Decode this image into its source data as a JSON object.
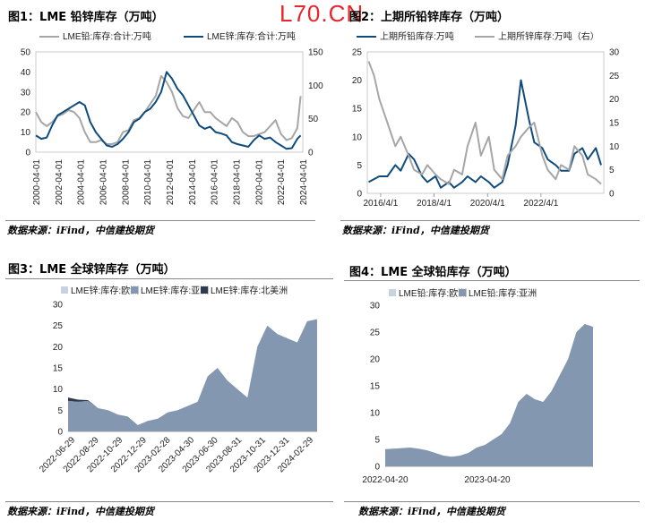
{
  "watermark": "L70.CN",
  "panels": {
    "fig1": {
      "title": "图1：LME 铅锌库存（万吨）",
      "source": "数据来源：iFind，中信建投期货"
    },
    "fig2": {
      "title": "图2：上期所铅锌库存（万吨）",
      "source": "数据来源：iFind，中信建投期货"
    },
    "fig3": {
      "title": "图3：LME 全球锌库存（万吨）",
      "source": "数据来源：iFind，中信建投期货"
    },
    "fig4": {
      "title": "图4：LME 全球铅库存（万吨）",
      "source": "数据来源：iFind，中信建投期货"
    }
  },
  "chart_data": [
    {
      "id": "fig1",
      "type": "line",
      "series": [
        {
          "name": "LME铅:库存:合计:万吨",
          "axis": "left",
          "color": "#a6a6a6",
          "x": [
            2000.0,
            2000.5,
            2001.0,
            2001.5,
            2002.0,
            2002.5,
            2003.0,
            2003.5,
            2004.0,
            2004.5,
            2005.0,
            2005.5,
            2006.0,
            2006.5,
            2007.0,
            2007.5,
            2008.0,
            2008.5,
            2009.0,
            2009.5,
            2010.0,
            2010.5,
            2011.0,
            2011.5,
            2012.0,
            2012.5,
            2013.0,
            2013.5,
            2014.0,
            2014.5,
            2015.0,
            2015.5,
            2016.0,
            2016.5,
            2017.0,
            2017.5,
            2018.0,
            2018.5,
            2019.0,
            2019.5,
            2020.0,
            2020.5,
            2021.0,
            2021.5,
            2022.0,
            2022.5,
            2023.0,
            2023.5,
            2024.0,
            2024.3
          ],
          "values": [
            20,
            15,
            13,
            15,
            18,
            19,
            21,
            20,
            17,
            10,
            5,
            5,
            6,
            4,
            4,
            5,
            10,
            11,
            16,
            17,
            20,
            24,
            28,
            38,
            35,
            30,
            22,
            18,
            17,
            21,
            25,
            20,
            20,
            17,
            15,
            13,
            17,
            15,
            10,
            8,
            8,
            9,
            10,
            13,
            16,
            9,
            6,
            7,
            12,
            28
          ]
        },
        {
          "name": "LME锌:库存:合计:万吨",
          "axis": "right",
          "color": "#0f4c7d",
          "x": [
            2000.0,
            2000.5,
            2001.0,
            2001.5,
            2002.0,
            2002.5,
            2003.0,
            2003.5,
            2004.0,
            2004.5,
            2005.0,
            2005.5,
            2006.0,
            2006.5,
            2007.0,
            2007.5,
            2008.0,
            2008.5,
            2009.0,
            2009.5,
            2010.0,
            2010.5,
            2011.0,
            2011.5,
            2012.0,
            2012.5,
            2013.0,
            2013.5,
            2014.0,
            2014.5,
            2015.0,
            2015.5,
            2016.0,
            2016.5,
            2017.0,
            2017.5,
            2018.0,
            2018.5,
            2019.0,
            2019.5,
            2020.0,
            2020.5,
            2021.0,
            2021.5,
            2022.0,
            2022.5,
            2023.0,
            2023.5,
            2024.0,
            2024.3
          ],
          "values": [
            25,
            20,
            22,
            40,
            55,
            60,
            65,
            70,
            75,
            70,
            45,
            30,
            20,
            10,
            8,
            12,
            20,
            30,
            45,
            50,
            60,
            65,
            75,
            90,
            120,
            110,
            95,
            85,
            70,
            55,
            40,
            35,
            38,
            30,
            28,
            25,
            15,
            12,
            10,
            8,
            18,
            25,
            20,
            22,
            15,
            10,
            5,
            6,
            20,
            25
          ]
        }
      ],
      "yLeft": [
        0,
        50
      ],
      "yRight": [
        0,
        150
      ],
      "yLeftTicks": [
        0,
        10,
        20,
        30,
        40,
        50
      ],
      "yRightTicks": [
        0,
        50,
        100,
        150
      ],
      "xTicks": [
        "2000-04-01",
        "2002-04-01",
        "2004-04-01",
        "2006-04-01",
        "2008-04-01",
        "2010-04-01",
        "2012-04-01",
        "2014-04-01",
        "2016-04-01",
        "2018-04-01",
        "2020-04-01",
        "2022-04-01",
        "2024-04-01"
      ]
    },
    {
      "id": "fig2",
      "type": "line",
      "series": [
        {
          "name": "上期所铅库存:万吨",
          "axis": "left",
          "color": "#0f4c7d",
          "x": [
            2015.8,
            2016.2,
            2016.5,
            2016.8,
            2017.0,
            2017.3,
            2017.5,
            2017.8,
            2018.0,
            2018.3,
            2018.5,
            2018.8,
            2019.0,
            2019.3,
            2019.5,
            2019.8,
            2020.0,
            2020.3,
            2020.5,
            2020.8,
            2021.0,
            2021.3,
            2021.5,
            2021.8,
            2022.0,
            2022.3,
            2022.5,
            2022.8,
            2023.0,
            2023.3,
            2023.5,
            2023.8,
            2024.0,
            2024.3,
            2024.5
          ],
          "values": [
            2,
            3,
            3,
            5,
            4,
            7,
            6,
            3,
            2,
            3,
            1,
            2,
            1,
            2,
            3,
            2,
            3,
            2,
            1,
            2,
            5,
            12,
            20,
            13,
            9,
            8,
            6,
            5,
            4,
            4,
            7,
            8,
            6,
            8,
            5
          ]
        },
        {
          "name": "上期所锌库存:万吨（右）",
          "axis": "right",
          "color": "#a6a6a6",
          "x": [
            2015.8,
            2016.0,
            2016.2,
            2016.5,
            2016.8,
            2017.0,
            2017.3,
            2017.5,
            2017.8,
            2018.0,
            2018.3,
            2018.5,
            2018.8,
            2019.0,
            2019.3,
            2019.5,
            2019.8,
            2020.0,
            2020.3,
            2020.5,
            2020.8,
            2021.0,
            2021.3,
            2021.5,
            2021.8,
            2022.0,
            2022.3,
            2022.5,
            2022.8,
            2023.0,
            2023.3,
            2023.5,
            2023.8,
            2024.0,
            2024.3,
            2024.5
          ],
          "values": [
            28,
            25,
            20,
            15,
            10,
            12,
            8,
            5,
            4,
            6,
            4,
            3,
            2,
            5,
            4,
            10,
            15,
            8,
            12,
            5,
            3,
            8,
            10,
            12,
            14,
            15,
            8,
            5,
            3,
            6,
            5,
            10,
            8,
            4,
            3,
            2
          ]
        }
      ],
      "yLeft": [
        0,
        25
      ],
      "yRight": [
        0,
        30
      ],
      "yLeftTicks": [
        0,
        5,
        10,
        15,
        20,
        25
      ],
      "yRightTicks": [
        0,
        5,
        10,
        15,
        20,
        25,
        30
      ],
      "xTicks": [
        "2016/4/1",
        "2018/4/1",
        "2020/4/1",
        "2022/4/1"
      ]
    },
    {
      "id": "fig3",
      "type": "area",
      "series": [
        {
          "name": "LME锌:库存:欧洲",
          "color": "#c9d2e3",
          "values": [
            0,
            0,
            0,
            0,
            0,
            0,
            0,
            0,
            0,
            0,
            0,
            0,
            0,
            0,
            0,
            0,
            0,
            0,
            0,
            0,
            0,
            0,
            0,
            0,
            0,
            0
          ]
        },
        {
          "name": "LME锌:库存:亚洲",
          "color": "#8497b0",
          "values": [
            7.2,
            7.0,
            7.2,
            5.5,
            5.0,
            4.0,
            3.5,
            1.5,
            2.5,
            3.0,
            4.5,
            5.0,
            6.0,
            7.0,
            13.0,
            15.0,
            12.0,
            10.0,
            8.0,
            20.0,
            25.0,
            23.0,
            22.0,
            21.0,
            26.0,
            26.5
          ]
        },
        {
          "name": "LME锌:库存:北美洲",
          "color": "#2e3a4d",
          "values": [
            0.8,
            0.5,
            0.2,
            0,
            0,
            0,
            0,
            0,
            0,
            0,
            0,
            0,
            0,
            0,
            0,
            0,
            0,
            0,
            0,
            0,
            0,
            0,
            0,
            0,
            0,
            0
          ]
        }
      ],
      "yRange": [
        0,
        30
      ],
      "yTicks": [
        0,
        5,
        10,
        15,
        20,
        25,
        30
      ],
      "xTicks": [
        "2022-06-29",
        "2022-08-29",
        "2022-10-29",
        "2022-12-29",
        "2023-02-28",
        "2023-04-30",
        "2023-06-30",
        "2023-08-31",
        "2023-10-31",
        "2023-12-31",
        "2024-02-29"
      ]
    },
    {
      "id": "fig4",
      "type": "area",
      "series": [
        {
          "name": "LME铅:库存:欧洲",
          "color": "#c9d2e3",
          "values": [
            0,
            0,
            0,
            0,
            0,
            0,
            0,
            0,
            0,
            0,
            0,
            0,
            0,
            0,
            0,
            0,
            0,
            0,
            0,
            0,
            0,
            0,
            0,
            0,
            0,
            0
          ]
        },
        {
          "name": "LME铅:库存:亚洲",
          "color": "#8497b0",
          "values": [
            3.2,
            3.3,
            3.4,
            3.5,
            3.3,
            3.0,
            2.5,
            2.0,
            1.8,
            2.0,
            2.5,
            3.5,
            4.0,
            5.0,
            6.0,
            8.0,
            12.0,
            13.5,
            12.5,
            12.0,
            14.0,
            17.0,
            20.0,
            25.0,
            26.5,
            26.0
          ]
        }
      ],
      "yRange": [
        0,
        30
      ],
      "yTicks": [
        0,
        5,
        10,
        15,
        20,
        25,
        30
      ],
      "xTicks": [
        "2022-04-20",
        "2023-04-20"
      ]
    }
  ]
}
